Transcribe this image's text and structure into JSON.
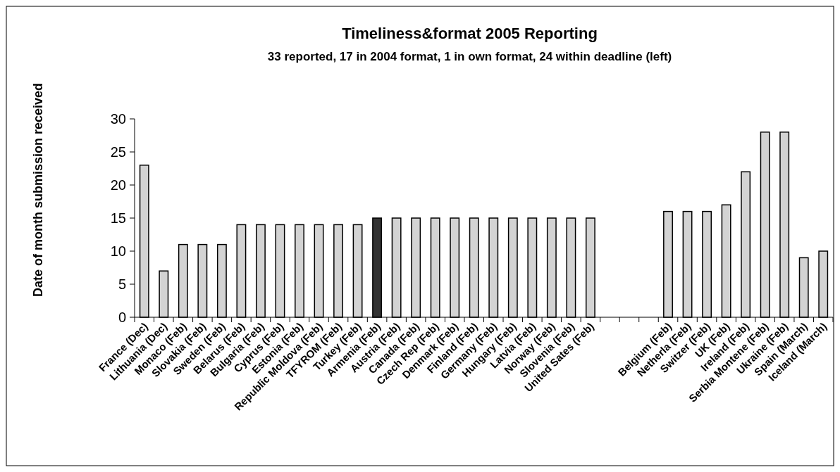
{
  "chart_data": {
    "type": "bar",
    "title": "Timeliness&format 2005 Reporting",
    "subtitle": "33 reported, 17 in 2004 format, 1 in own format, 24 within deadline (left)",
    "ylabel": "Date of month submission received",
    "categories": [
      "France (Dec)",
      "Lithuania (Dec)",
      "Monaco (Feb)",
      "Slovakia (Feb)",
      "Sweden (Feb)",
      "Belarus (Feb)",
      "Bulgaria (Feb)",
      "Cyprus (Feb)",
      "Estonia (Feb)",
      "Republic Moldova (Feb)",
      "TFYROM (Feb)",
      "Turkey (Feb)",
      "Armenia (Feb)",
      "Austria (Feb)",
      "Canada (Feb)",
      "Czech Rep (Feb)",
      "Denmark (Feb)",
      "Finland (Feb)",
      "Germany (Feb)",
      "Hungary (Feb)",
      "Latvia (Feb)",
      "Norway (Feb)",
      "Slovenia (Feb)",
      "United Sates (Feb)",
      null,
      null,
      null,
      "Belgium (Feb)",
      "Netherla (Feb)",
      "Switzer (Feb)",
      "UK (Feb)",
      "Ireland (Feb)",
      "Serbia Montene (Feb)",
      "Ukraine (Feb)",
      "Spain (March)",
      "Iceland (March)"
    ],
    "values": [
      23,
      7,
      11,
      11,
      11,
      14,
      14,
      14,
      14,
      14,
      14,
      14,
      15,
      15,
      15,
      15,
      15,
      15,
      15,
      15,
      15,
      15,
      15,
      15,
      null,
      null,
      null,
      16,
      16,
      16,
      17,
      22,
      28,
      28,
      9,
      10
    ],
    "colors": [
      "#d3d3d3",
      "#d3d3d3",
      "#d3d3d3",
      "#d3d3d3",
      "#d3d3d3",
      "#d3d3d3",
      "#d3d3d3",
      "#d3d3d3",
      "#d3d3d3",
      "#d3d3d3",
      "#d3d3d3",
      "#d3d3d3",
      "#333333",
      "#d3d3d3",
      "#d3d3d3",
      "#d3d3d3",
      "#d3d3d3",
      "#d3d3d3",
      "#d3d3d3",
      "#d3d3d3",
      "#d3d3d3",
      "#d3d3d3",
      "#d3d3d3",
      "#d3d3d3",
      null,
      null,
      null,
      "#d3d3d3",
      "#d3d3d3",
      "#d3d3d3",
      "#d3d3d3",
      "#d3d3d3",
      "#d3d3d3",
      "#d3d3d3",
      "#d3d3d3",
      "#d3d3d3"
    ],
    "ylim": [
      0,
      30
    ],
    "yticks": [
      0,
      5,
      10,
      15,
      20,
      25,
      30
    ],
    "grid": false
  }
}
